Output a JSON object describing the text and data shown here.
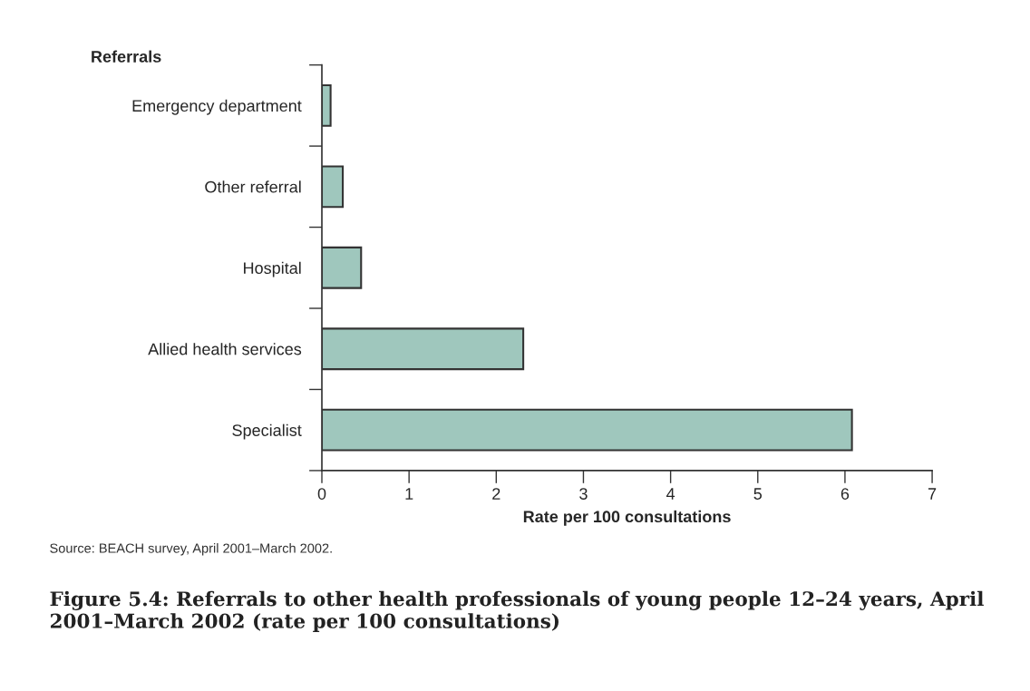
{
  "chart_data": {
    "type": "bar",
    "orientation": "horizontal",
    "title": "Figure 5.4: Referrals to other health professionals of young people 12–24 years, April 2001–March 2002 (rate per 100 consultations)",
    "ylabel": "Referrals",
    "xlabel": "Rate per 100 consultations",
    "categories": [
      "Emergency department",
      "Other referral",
      "Hospital",
      "Allied health services",
      "Specialist"
    ],
    "values": [
      0.1,
      0.24,
      0.45,
      2.31,
      6.08
    ],
    "color": "#9fc7bd",
    "xlim": [
      0,
      7
    ],
    "xticks": [
      0,
      1,
      2,
      3,
      4,
      5,
      6,
      7
    ],
    "grid": false,
    "annotations": [
      "Source: BEACH survey, April 2001–March 2002."
    ]
  }
}
